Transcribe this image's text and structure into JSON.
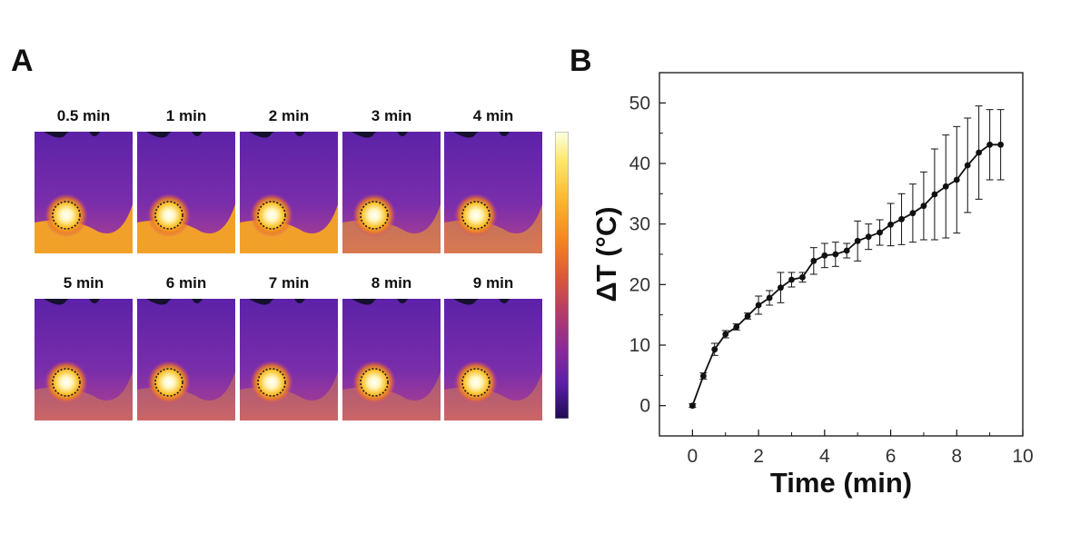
{
  "panelA": {
    "label": "A",
    "thumbnails": [
      {
        "time": "0.5 min"
      },
      {
        "time": "1 min"
      },
      {
        "time": "2 min"
      },
      {
        "time": "3 min"
      },
      {
        "time": "4 min"
      },
      {
        "time": "5 min"
      },
      {
        "time": "6 min"
      },
      {
        "time": "7 min"
      },
      {
        "time": "8 min"
      },
      {
        "time": "9 min"
      }
    ],
    "colors": {
      "background": "#6a28b0",
      "hot": "#fff7c0",
      "warm": "#f5a623",
      "dark": "#15102e"
    }
  },
  "panelB": {
    "label": "B"
  },
  "chart_data": {
    "type": "line",
    "title": "",
    "xlabel": "Time (min)",
    "ylabel": "ΔT (°C)",
    "xlim": [
      -1,
      10
    ],
    "ylim": [
      -5,
      55
    ],
    "xticks": [
      0,
      2,
      4,
      6,
      8,
      10
    ],
    "yticks": [
      0,
      10,
      20,
      30,
      40,
      50
    ],
    "grid": false,
    "series": [
      {
        "name": "ΔT",
        "x": [
          0,
          0.33,
          0.67,
          1.0,
          1.33,
          1.67,
          2.0,
          2.33,
          2.67,
          3.0,
          3.33,
          3.67,
          4.0,
          4.33,
          4.67,
          5.0,
          5.33,
          5.67,
          6.0,
          6.33,
          6.67,
          7.0,
          7.33,
          7.67,
          8.0,
          8.33,
          8.67,
          9.0,
          9.33
        ],
        "y": [
          0,
          4.9,
          9.3,
          11.8,
          13.0,
          14.8,
          16.6,
          17.8,
          19.5,
          20.8,
          21.2,
          23.9,
          24.8,
          25.0,
          25.6,
          27.2,
          27.9,
          28.6,
          29.9,
          30.8,
          31.8,
          33.0,
          34.9,
          36.2,
          37.3,
          39.7,
          41.8,
          43.1,
          43.1
        ],
        "err": [
          0.3,
          0.5,
          1.0,
          0.6,
          0.5,
          0.5,
          1.5,
          1.2,
          2.5,
          1.2,
          0.8,
          2.2,
          2.0,
          2.0,
          1.2,
          3.3,
          2.1,
          2.1,
          3.5,
          4.2,
          4.8,
          5.6,
          7.5,
          8.5,
          8.8,
          7.8,
          7.7,
          5.8,
          5.8
        ]
      }
    ]
  }
}
